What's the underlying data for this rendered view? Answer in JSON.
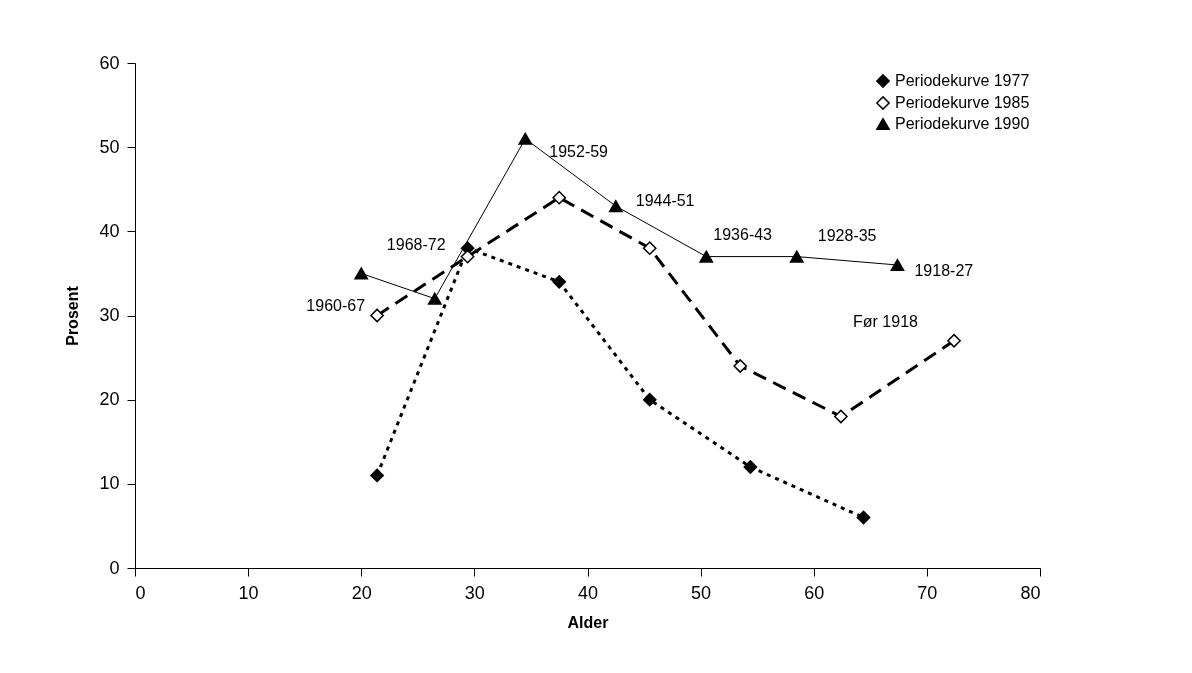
{
  "chart_data": {
    "type": "line",
    "xlabel": "Alder",
    "ylabel": "Prosent",
    "xlim": [
      0,
      80
    ],
    "xticks": [
      0,
      10,
      20,
      30,
      40,
      50,
      60,
      70,
      80
    ],
    "ylim": [
      0,
      60
    ],
    "yticks": [
      0,
      10,
      20,
      30,
      40,
      50,
      60
    ],
    "grid": false,
    "legend": "top right",
    "series": [
      {
        "name": "Periodekurve 1977",
        "color": "#000000",
        "marker": "diamond",
        "line_style": "dotted",
        "x": [
          21.4,
          29.4,
          37.5,
          45.5,
          54.4,
          64.4
        ],
        "values": [
          11,
          38,
          34,
          20,
          12,
          6
        ]
      },
      {
        "name": "Periodekurve 1985",
        "color": "#000000",
        "marker": "diamond",
        "line_style": "dashed",
        "x": [
          21.4,
          29.4,
          37.5,
          45.5,
          53.5,
          62.4,
          72.4
        ],
        "values": [
          30,
          37,
          44,
          38,
          24,
          18,
          27
        ]
      },
      {
        "name": "Periodekurve 1990",
        "color": "#000000",
        "marker": "triangle",
        "line_style": "solid",
        "x": [
          20.0,
          26.5,
          34.5,
          42.5,
          50.5,
          58.5,
          67.4
        ],
        "values": [
          35,
          32,
          51,
          43,
          37,
          37,
          36
        ]
      }
    ],
    "annotations": [
      {
        "text": "1960-67",
        "x": 21.4,
        "y": 30
      },
      {
        "text": "1968-72",
        "x": 29.4,
        "y": 38
      },
      {
        "text": "1952-59",
        "x": 34.5,
        "y": 51
      },
      {
        "text": "1944-51",
        "x": 42.5,
        "y": 43
      },
      {
        "text": "1936-43",
        "x": 50.5,
        "y": 37
      },
      {
        "text": "1928-35",
        "x": 58.5,
        "y": 37
      },
      {
        "text": "1918-27",
        "x": 67.4,
        "y": 36
      },
      {
        "text": "Før 1918",
        "x": 72.4,
        "y": 27
      }
    ]
  }
}
